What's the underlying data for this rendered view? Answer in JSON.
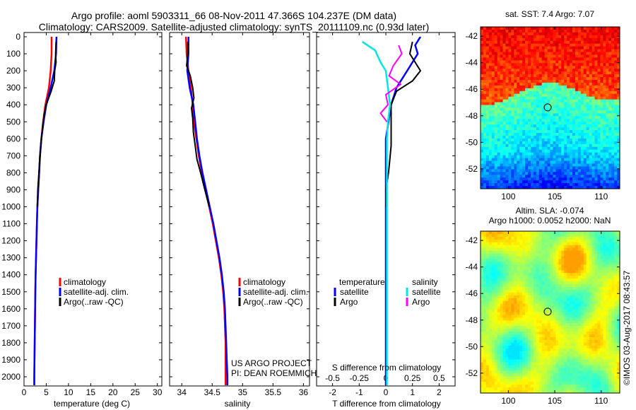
{
  "header": {
    "title_line1": "Argo profile: aoml 5903311_66 08-Nov-2011 47.366S 104.237E (DM data)",
    "title_line2": "Climatology: CARS2009. Satellite-adjusted climatology: synTS_20111109.nc (0.93d later)"
  },
  "credits": {
    "project": "US ARGO PROJECT",
    "pi": "PI: DEAN ROEMMICH",
    "imos": "©IMOS 03-Aug-2017 08:43:57"
  },
  "colors": {
    "climatology": "#ff0000",
    "satellite": "#0000ff",
    "argo": "#000000",
    "salinity_satellite": "#00e5e5",
    "salinity_argo": "#ff00ff"
  },
  "chart_data": [
    {
      "id": "temperature_profile",
      "type": "line",
      "xlabel": "temperature (deg C)",
      "ylabel": "",
      "xlim": [
        0,
        31
      ],
      "ylim": [
        2080,
        0
      ],
      "xticks": [
        0,
        5,
        10,
        15,
        20,
        25,
        30
      ],
      "yticks": [
        0,
        100,
        200,
        300,
        400,
        500,
        600,
        700,
        800,
        900,
        1000,
        1100,
        1200,
        1300,
        1400,
        1500,
        1600,
        1700,
        1800,
        1900,
        2000
      ],
      "legend_position": "lower-center",
      "series": [
        {
          "name": "climatology",
          "color": "#ff0000",
          "width": 2.5,
          "points": [
            [
              6.2,
              0
            ],
            [
              6.2,
              100
            ],
            [
              6.0,
              200
            ],
            [
              5.6,
              300
            ],
            [
              4.8,
              400
            ],
            [
              4.3,
              500
            ],
            [
              3.9,
              600
            ],
            [
              3.6,
              700
            ],
            [
              3.4,
              800
            ],
            [
              3.2,
              900
            ],
            [
              3.0,
              1000
            ],
            [
              2.9,
              1100
            ],
            [
              2.8,
              1200
            ],
            [
              2.7,
              1300
            ],
            [
              2.6,
              1400
            ],
            [
              2.55,
              1500
            ],
            [
              2.5,
              1600
            ],
            [
              2.45,
              1700
            ],
            [
              2.4,
              1800
            ],
            [
              2.35,
              1900
            ],
            [
              2.3,
              2000
            ],
            [
              2.3,
              2050
            ]
          ]
        },
        {
          "name": "satellite-adj. clim.",
          "color": "#0000ff",
          "width": 2.5,
          "points": [
            [
              7.3,
              0
            ],
            [
              7.2,
              100
            ],
            [
              6.8,
              200
            ],
            [
              6.0,
              300
            ],
            [
              5.0,
              400
            ],
            [
              4.4,
              500
            ],
            [
              3.9,
              600
            ],
            [
              3.6,
              700
            ],
            [
              3.4,
              800
            ],
            [
              3.2,
              900
            ],
            [
              3.0,
              1000
            ],
            [
              2.9,
              1100
            ],
            [
              2.8,
              1200
            ],
            [
              2.7,
              1300
            ],
            [
              2.6,
              1400
            ],
            [
              2.55,
              1500
            ],
            [
              2.5,
              1600
            ],
            [
              2.45,
              1700
            ],
            [
              2.4,
              1800
            ],
            [
              2.35,
              1900
            ],
            [
              2.3,
              2000
            ],
            [
              2.3,
              2050
            ]
          ]
        },
        {
          "name": "Argo(..raw -QC)",
          "color": "#000000",
          "width": 2,
          "points": [
            [
              7.2,
              30
            ],
            [
              7.1,
              100
            ],
            [
              7.2,
              150
            ],
            [
              6.9,
              200
            ],
            [
              6.8,
              260
            ],
            [
              6.1,
              320
            ],
            [
              5.0,
              400
            ],
            [
              4.5,
              460
            ],
            [
              4.1,
              550
            ],
            [
              3.8,
              640
            ],
            [
              3.55,
              720
            ],
            [
              3.35,
              800
            ],
            [
              3.1,
              900
            ],
            [
              3.0,
              1000
            ]
          ]
        }
      ],
      "legend": [
        "climatology",
        "satellite-adj. clim.",
        "Argo(..raw -QC)"
      ]
    },
    {
      "id": "salinity_profile",
      "type": "line",
      "xlabel": "salinity",
      "ylabel": "",
      "xlim": [
        33.8,
        36.1
      ],
      "ylim": [
        2080,
        0
      ],
      "xticks": [
        34,
        34.5,
        35,
        35.5,
        36
      ],
      "legend_position": "lower-center",
      "series": [
        {
          "name": "climatology",
          "color": "#ff0000",
          "width": 2.5,
          "points": [
            [
              34.07,
              0
            ],
            [
              34.08,
              100
            ],
            [
              34.11,
              200
            ],
            [
              34.15,
              300
            ],
            [
              34.18,
              400
            ],
            [
              34.2,
              500
            ],
            [
              34.24,
              600
            ],
            [
              34.28,
              700
            ],
            [
              34.33,
              800
            ],
            [
              34.39,
              900
            ],
            [
              34.45,
              1000
            ],
            [
              34.51,
              1100
            ],
            [
              34.56,
              1200
            ],
            [
              34.61,
              1300
            ],
            [
              34.65,
              1400
            ],
            [
              34.68,
              1500
            ],
            [
              34.7,
              1600
            ],
            [
              34.71,
              1700
            ],
            [
              34.72,
              1800
            ],
            [
              34.72,
              1900
            ],
            [
              34.72,
              2000
            ],
            [
              34.72,
              2050
            ]
          ]
        },
        {
          "name": "satellite-adj. clim.",
          "color": "#0000ff",
          "width": 2.5,
          "points": [
            [
              34.11,
              0
            ],
            [
              34.11,
              100
            ],
            [
              34.09,
              200
            ],
            [
              34.13,
              300
            ],
            [
              34.19,
              400
            ],
            [
              34.22,
              500
            ],
            [
              34.25,
              600
            ],
            [
              34.29,
              700
            ],
            [
              34.34,
              800
            ],
            [
              34.4,
              900
            ],
            [
              34.46,
              1000
            ],
            [
              34.52,
              1100
            ],
            [
              34.57,
              1200
            ],
            [
              34.62,
              1300
            ],
            [
              34.66,
              1400
            ],
            [
              34.69,
              1500
            ],
            [
              34.71,
              1600
            ],
            [
              34.72,
              1700
            ],
            [
              34.73,
              1800
            ],
            [
              34.74,
              1900
            ],
            [
              34.75,
              2000
            ],
            [
              34.75,
              2050
            ]
          ]
        },
        {
          "name": "Argo(..raw -QC)",
          "color": "#000000",
          "width": 2,
          "points": [
            [
              34.1,
              30
            ],
            [
              34.1,
              100
            ],
            [
              34.08,
              170
            ],
            [
              34.14,
              230
            ],
            [
              34.18,
              300
            ],
            [
              34.2,
              360
            ],
            [
              34.16,
              420
            ],
            [
              34.18,
              480
            ],
            [
              34.19,
              560
            ],
            [
              34.22,
              640
            ],
            [
              34.25,
              720
            ],
            [
              34.31,
              800
            ],
            [
              34.38,
              900
            ],
            [
              34.45,
              1000
            ]
          ]
        }
      ],
      "legend": [
        "climatology",
        "satellite-adj. clim.",
        "Argo(..raw -QC)"
      ]
    },
    {
      "id": "difference_profile",
      "type": "line",
      "xlabel": "T difference from climatology",
      "xlabel_top": "S difference from climatology",
      "xlim": [
        -2.6,
        2.6
      ],
      "ylim": [
        2080,
        0
      ],
      "xticks": [
        -2,
        -1,
        0,
        1,
        2
      ],
      "xticks_top": [
        -0.5,
        -0.25,
        0,
        0.25,
        0.5
      ],
      "xticks_top_labels": [
        "-0.5",
        "-0.25",
        "0",
        "0.25",
        "0.5"
      ],
      "s_scale": 4,
      "legend_position": "lower-center",
      "legend_titles": {
        "temperature": "temperature",
        "salinity": "salinity"
      },
      "series": [
        {
          "name": "temperature satellite",
          "color": "#0000ff",
          "width": 2.5,
          "points": [
            [
              1.3,
              0
            ],
            [
              1.1,
              50
            ],
            [
              1.2,
              100
            ],
            [
              0.8,
              200
            ],
            [
              0.4,
              300
            ],
            [
              0.2,
              400
            ],
            [
              0.1,
              500
            ],
            [
              0.0,
              600
            ],
            [
              0.0,
              800
            ],
            [
              0.0,
              1000
            ],
            [
              0.0,
              1200
            ],
            [
              0.0,
              1400
            ],
            [
              0.0,
              2050
            ]
          ]
        },
        {
          "name": "temperature Argo",
          "color": "#000000",
          "width": 2,
          "points": [
            [
              1.0,
              30
            ],
            [
              0.9,
              100
            ],
            [
              1.3,
              200
            ],
            [
              1.0,
              260
            ],
            [
              0.4,
              320
            ],
            [
              0.2,
              400
            ],
            [
              0.2,
              460
            ],
            [
              0.2,
              550
            ],
            [
              0.2,
              640
            ],
            [
              0.15,
              720
            ],
            [
              0.1,
              800
            ],
            [
              0.0,
              900
            ],
            [
              0.0,
              1000
            ]
          ]
        },
        {
          "name": "salinity satellite",
          "color": "#00e5e5",
          "width": 2.5,
          "points": [
            [
              -0.22,
              30
            ],
            [
              -0.1,
              80
            ],
            [
              -0.05,
              150
            ],
            [
              0.0,
              200
            ],
            [
              0.02,
              300
            ],
            [
              0.04,
              400
            ],
            [
              0.02,
              500
            ],
            [
              0.01,
              600
            ],
            [
              0.01,
              700
            ],
            [
              0.01,
              800
            ],
            [
              0.01,
              1000
            ],
            [
              0.01,
              1200
            ],
            [
              0.01,
              1500
            ],
            [
              0.01,
              2050
            ]
          ]
        },
        {
          "name": "salinity Argo",
          "color": "#ff00ff",
          "width": 2,
          "points": [
            [
              0.12,
              50
            ],
            [
              0.15,
              100
            ],
            [
              0.07,
              170
            ],
            [
              0.03,
              230
            ],
            [
              0.14,
              280
            ],
            [
              0.0,
              340
            ],
            [
              0.02,
              400
            ],
            [
              -0.05,
              450
            ],
            [
              0.01,
              500
            ]
          ]
        }
      ],
      "legend": [
        {
          "group": "temperature",
          "label": "satellite",
          "color": "#0000ff"
        },
        {
          "group": "temperature",
          "label": "Argo",
          "color": "#000000"
        },
        {
          "group": "salinity",
          "label": "satellite",
          "color": "#00e5e5"
        },
        {
          "group": "salinity",
          "label": "Argo",
          "color": "#ff00ff"
        }
      ]
    },
    {
      "id": "sst_map",
      "type": "heatmap",
      "title": "sat. SST: 7.4 Argo: 7.07",
      "xlim": [
        97,
        112
      ],
      "ylim": [
        -53.5,
        -41.3
      ],
      "xticks": [
        100,
        105,
        110
      ],
      "yticks": [
        -42,
        -44,
        -46,
        -48,
        -50,
        -52
      ],
      "marker": {
        "lon": 104.237,
        "lat": -47.366
      }
    },
    {
      "id": "sla_map",
      "type": "heatmap",
      "title": "Altim. SLA: -0.074",
      "subtitle": "Argo h1000: 0.0052 h2000: NaN",
      "xlim": [
        97,
        112
      ],
      "ylim": [
        -53.5,
        -41.3
      ],
      "xticks": [
        100,
        105,
        110
      ],
      "yticks": [
        -42,
        -44,
        -46,
        -48,
        -50,
        -52
      ],
      "marker": {
        "lon": 104.237,
        "lat": -47.366
      }
    }
  ]
}
